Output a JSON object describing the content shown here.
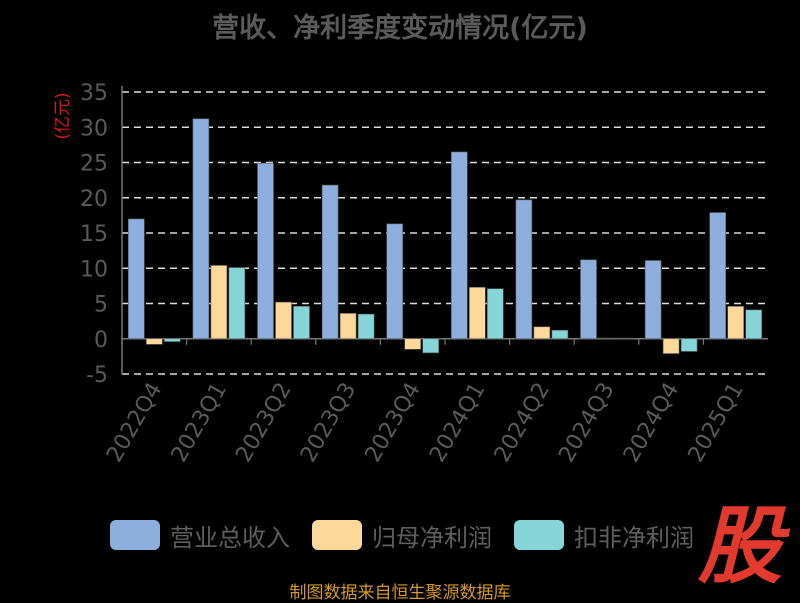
{
  "title": "营收、净利季度变动情况(亿元)",
  "source": "制图数据来自恒生聚源数据库",
  "logo_text": "股",
  "chart_data": {
    "type": "bar",
    "title": "营收、净利季度变动情况(亿元)",
    "ylabel": "(亿元)",
    "ylim": [
      -5,
      35
    ],
    "yticks": [
      -5,
      0,
      5,
      10,
      15,
      20,
      25,
      30,
      35
    ],
    "grid": true,
    "legend_position": "bottom",
    "categories": [
      "2022Q4",
      "2023Q1",
      "2023Q2",
      "2023Q3",
      "2023Q4",
      "2024Q1",
      "2024Q2",
      "2024Q3",
      "2024Q4",
      "2025Q1"
    ],
    "series": [
      {
        "name": "营业总收入",
        "color": "#8eafde",
        "values": [
          17.0,
          31.2,
          24.9,
          21.8,
          16.3,
          26.5,
          19.7,
          11.2,
          11.1,
          17.9
        ]
      },
      {
        "name": "归母净利润",
        "color": "#fcd89b",
        "values": [
          -0.8,
          10.4,
          5.2,
          3.6,
          -1.5,
          7.3,
          1.7,
          0.1,
          -2.1,
          4.6
        ]
      },
      {
        "name": "扣非净利润",
        "color": "#86d5d9",
        "values": [
          -0.4,
          10.1,
          4.6,
          3.5,
          -2.0,
          7.1,
          1.2,
          0.1,
          -1.8,
          4.1
        ]
      }
    ]
  }
}
